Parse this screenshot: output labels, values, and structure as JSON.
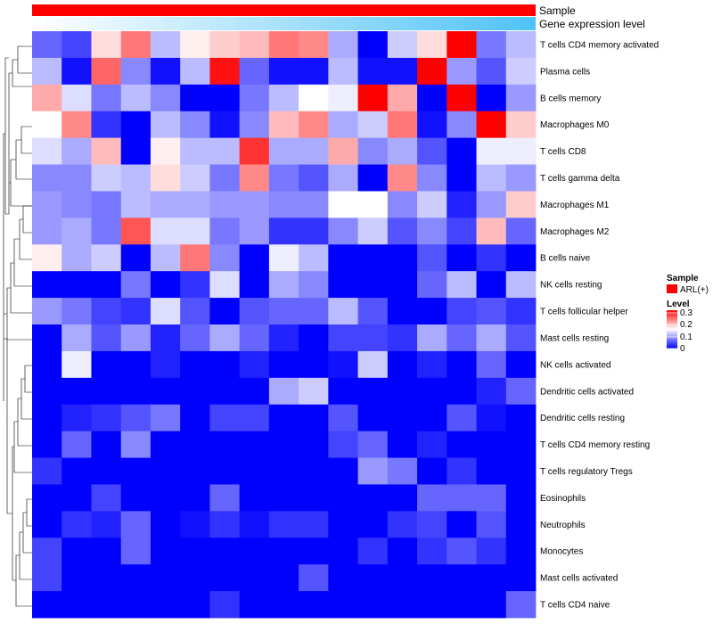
{
  "chart_data": {
    "type": "heatmap",
    "annotations": {
      "sample_label": "Sample",
      "expression_label": "Gene expression level",
      "sample_color": "#ff0000",
      "expression_gradient": [
        "#ffffff",
        "#4fc3f7"
      ]
    },
    "legend": {
      "sample_title": "Sample",
      "sample_entry": "ARL(+)",
      "sample_entry_color": "#ff0000",
      "level_title": "Level",
      "level_ticks": [
        "0.3",
        "0.2",
        "0.1",
        "0"
      ],
      "level_colors": [
        "#0000ff",
        "#ffffff",
        "#ff0000"
      ],
      "level_range": [
        0,
        0.3
      ]
    },
    "rows": [
      "T cells CD4 memory activated",
      "Plasma cells",
      "B cells memory",
      "Macrophages M0",
      "T cells CD8",
      "T cells gamma delta",
      "Macrophages M1",
      "Macrophages M2",
      "B cells naive",
      "NK cells resting",
      "T cells follicular helper",
      "Mast cells resting",
      "NK cells activated",
      "Dendritic cells activated",
      "Dendritic cells resting",
      "T cells CD4 memory resting",
      "T cells regulatory  Tregs",
      "Eosinophils",
      "Neutrophils",
      "Monocytes",
      "Mast cells activated",
      "T cells CD4 naive"
    ],
    "n_columns": 17,
    "values": [
      [
        0.06,
        0.04,
        0.17,
        0.23,
        0.11,
        0.16,
        0.18,
        0.19,
        0.23,
        0.22,
        0.1,
        0.0,
        0.12,
        0.17,
        0.3,
        0.07,
        0.11
      ],
      [
        0.11,
        0.01,
        0.24,
        0.08,
        0.01,
        0.11,
        0.29,
        0.06,
        0.01,
        0.01,
        0.11,
        0.01,
        0.01,
        0.3,
        0.09,
        0.05,
        0.12
      ],
      [
        0.2,
        0.13,
        0.07,
        0.11,
        0.08,
        0.0,
        0.0,
        0.07,
        0.11,
        0.15,
        0.14,
        0.3,
        0.2,
        0.0,
        0.3,
        0.0,
        0.09
      ],
      [
        0.15,
        0.22,
        0.03,
        0.0,
        0.11,
        0.08,
        0.01,
        0.08,
        0.19,
        0.22,
        0.1,
        0.12,
        0.23,
        0.01,
        0.08,
        0.3,
        0.18
      ],
      [
        0.13,
        0.1,
        0.19,
        0.0,
        0.16,
        0.11,
        0.11,
        0.27,
        0.1,
        0.1,
        0.2,
        0.08,
        0.1,
        0.05,
        0.0,
        0.14,
        0.14
      ],
      [
        0.08,
        0.08,
        0.12,
        0.11,
        0.17,
        0.12,
        0.07,
        0.22,
        0.07,
        0.05,
        0.1,
        0.0,
        0.22,
        0.08,
        0.0,
        0.11,
        0.09
      ],
      [
        0.09,
        0.08,
        0.07,
        0.11,
        0.1,
        0.1,
        0.09,
        0.09,
        0.08,
        0.08,
        0.15,
        0.15,
        0.08,
        0.12,
        0.02,
        0.09,
        0.18
      ],
      [
        0.09,
        0.1,
        0.07,
        0.25,
        0.13,
        0.13,
        0.07,
        0.09,
        0.03,
        0.03,
        0.08,
        0.12,
        0.05,
        0.08,
        0.04,
        0.19,
        0.06
      ],
      [
        0.16,
        0.1,
        0.12,
        0.0,
        0.11,
        0.23,
        0.08,
        0.0,
        0.14,
        0.11,
        0.0,
        0.0,
        0.0,
        0.05,
        0.0,
        0.03,
        0.0
      ],
      [
        0.0,
        0.0,
        0.0,
        0.07,
        0.0,
        0.03,
        0.13,
        0.0,
        0.1,
        0.08,
        0.0,
        0.0,
        0.0,
        0.06,
        0.11,
        0.0,
        0.11
      ],
      [
        0.09,
        0.07,
        0.04,
        0.03,
        0.13,
        0.05,
        0.0,
        0.05,
        0.06,
        0.06,
        0.11,
        0.05,
        0.0,
        0.0,
        0.04,
        0.05,
        0.03
      ],
      [
        0.0,
        0.1,
        0.05,
        0.09,
        0.02,
        0.06,
        0.1,
        0.06,
        0.02,
        0.0,
        0.04,
        0.04,
        0.03,
        0.1,
        0.06,
        0.1,
        0.05
      ],
      [
        0.0,
        0.14,
        0.0,
        0.0,
        0.02,
        0.0,
        0.0,
        0.02,
        0.0,
        0.0,
        0.01,
        0.12,
        0.0,
        0.02,
        0.0,
        0.06,
        0.0
      ],
      [
        0.0,
        0.0,
        0.0,
        0.0,
        0.0,
        0.0,
        0.0,
        0.0,
        0.1,
        0.12,
        0.0,
        0.0,
        0.0,
        0.0,
        0.0,
        0.02,
        0.06
      ],
      [
        0.0,
        0.02,
        0.03,
        0.05,
        0.07,
        0.0,
        0.04,
        0.04,
        0.0,
        0.0,
        0.05,
        0.0,
        0.0,
        0.0,
        0.05,
        0.01,
        0.0
      ],
      [
        0.0,
        0.06,
        0.0,
        0.08,
        0.0,
        0.0,
        0.0,
        0.0,
        0.0,
        0.0,
        0.04,
        0.06,
        0.0,
        0.02,
        0.0,
        0.0,
        0.0
      ],
      [
        0.03,
        0.0,
        0.0,
        0.0,
        0.0,
        0.0,
        0.0,
        0.0,
        0.0,
        0.0,
        0.0,
        0.09,
        0.07,
        0.0,
        0.03,
        0.0,
        0.0
      ],
      [
        0.0,
        0.0,
        0.04,
        0.0,
        0.0,
        0.0,
        0.06,
        0.0,
        0.0,
        0.0,
        0.0,
        0.0,
        0.0,
        0.06,
        0.06,
        0.06,
        0.0
      ],
      [
        0.0,
        0.03,
        0.02,
        0.06,
        0.0,
        0.01,
        0.03,
        0.01,
        0.03,
        0.03,
        0.0,
        0.0,
        0.03,
        0.04,
        0.0,
        0.05,
        0.0
      ],
      [
        0.04,
        0.0,
        0.0,
        0.06,
        0.0,
        0.0,
        0.0,
        0.0,
        0.0,
        0.0,
        0.0,
        0.03,
        0.0,
        0.03,
        0.05,
        0.03,
        0.0
      ],
      [
        0.04,
        0.0,
        0.0,
        0.0,
        0.0,
        0.0,
        0.0,
        0.0,
        0.0,
        0.05,
        0.0,
        0.0,
        0.0,
        0.0,
        0.0,
        0.0,
        0.0
      ],
      [
        0.0,
        0.0,
        0.0,
        0.0,
        0.0,
        0.0,
        0.03,
        0.0,
        0.0,
        0.0,
        0.0,
        0.0,
        0.0,
        0.0,
        0.0,
        0.0,
        0.06
      ]
    ]
  }
}
